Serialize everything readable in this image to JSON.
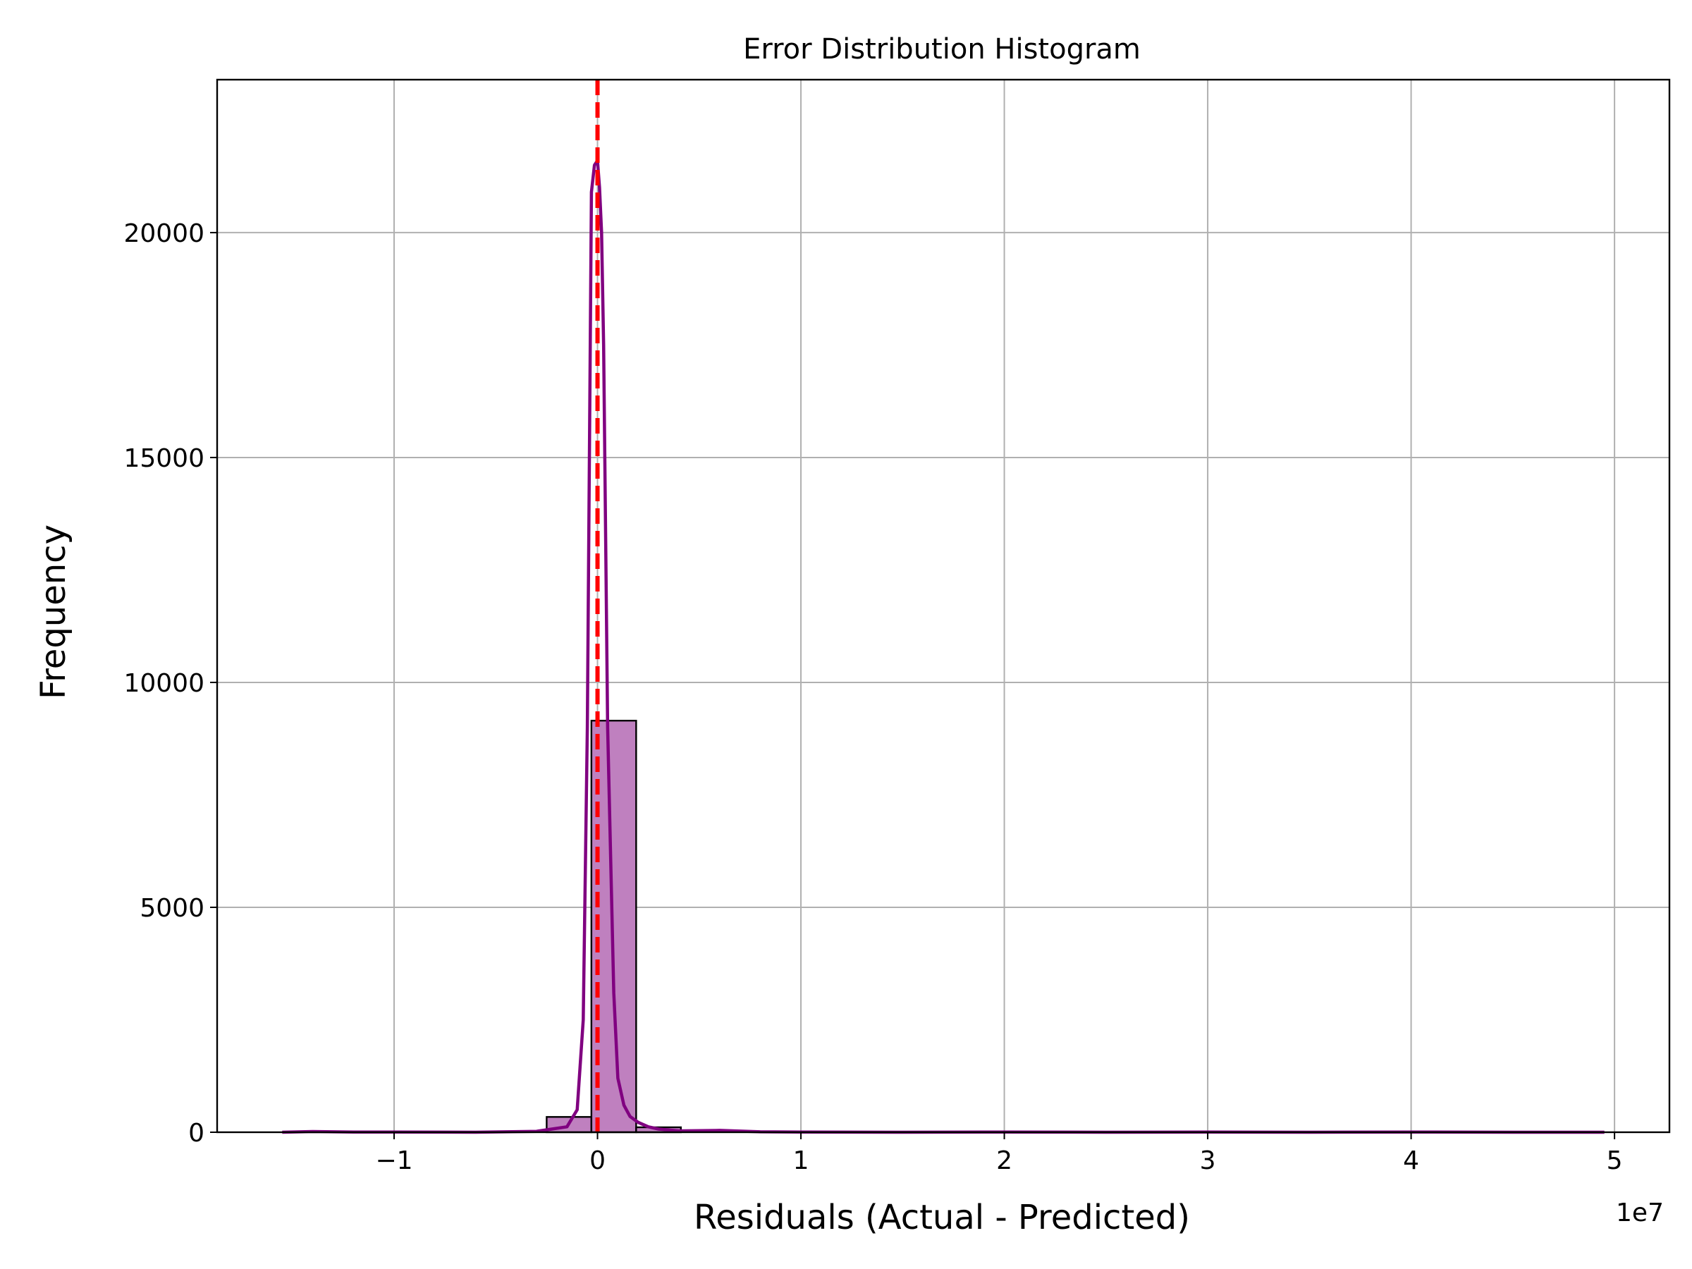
{
  "chart_data": {
    "type": "bar",
    "title": "Error Distribution Histogram",
    "xlabel": "Residuals (Actual - Predicted)",
    "ylabel": "Frequency",
    "x_offset_label": "1e7",
    "xlim": [
      -1.87,
      5.27
    ],
    "ylim": [
      0,
      23400
    ],
    "x_ticks": [
      {
        "value": -1,
        "label": "−1"
      },
      {
        "value": 0,
        "label": "0"
      },
      {
        "value": 1,
        "label": "1"
      },
      {
        "value": 2,
        "label": "2"
      },
      {
        "value": 3,
        "label": "3"
      },
      {
        "value": 4,
        "label": "4"
      },
      {
        "value": 5,
        "label": "5"
      }
    ],
    "y_ticks": [
      {
        "value": 0,
        "label": "0"
      },
      {
        "value": 5000,
        "label": "5000"
      },
      {
        "value": 10000,
        "label": "10000"
      },
      {
        "value": 15000,
        "label": "15000"
      },
      {
        "value": 20000,
        "label": "20000"
      }
    ],
    "grid": true,
    "bins": [
      {
        "start": -0.25,
        "end": -0.03,
        "count": 340
      },
      {
        "start": -0.03,
        "end": 0.19,
        "count": 9150
      },
      {
        "start": 0.19,
        "end": 0.41,
        "count": 110
      }
    ],
    "kde": {
      "x": [
        -1.55,
        -1.4,
        -1.2,
        -1.0,
        -0.6,
        -0.3,
        -0.15,
        -0.1,
        -0.07,
        -0.05,
        -0.03,
        -0.015,
        0.0,
        0.01,
        0.02,
        0.03,
        0.05,
        0.08,
        0.1,
        0.13,
        0.16,
        0.2,
        0.25,
        0.3,
        0.4,
        0.6,
        0.8,
        1.0,
        1.5,
        2.0,
        2.5,
        3.0,
        3.5,
        4.0,
        4.5,
        4.95
      ],
      "y": [
        0,
        15,
        5,
        5,
        0,
        20,
        120,
        500,
        2500,
        9000,
        20900,
        21500,
        21600,
        21000,
        20000,
        17500,
        9000,
        3100,
        1200,
        600,
        350,
        220,
        120,
        70,
        30,
        40,
        10,
        5,
        0,
        5,
        0,
        5,
        0,
        5,
        0,
        0
      ]
    },
    "reference_line": {
      "x": 0
    },
    "colors": {
      "bar_fill": "#bf80bf",
      "bar_edge": "#000000",
      "kde_line": "#800080",
      "reference_line": "#ff0000",
      "grid": "#b0b0b0"
    }
  }
}
